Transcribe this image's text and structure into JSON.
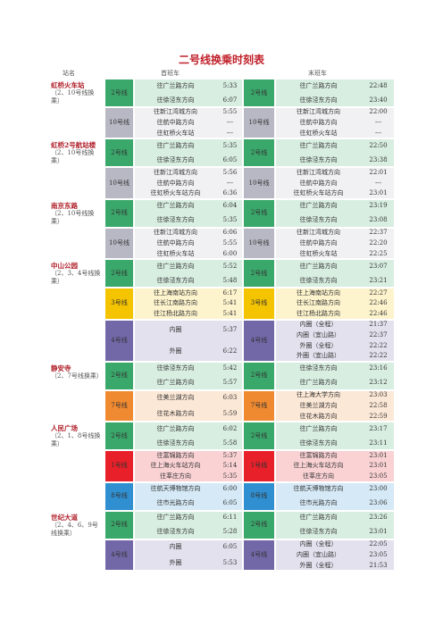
{
  "header": {
    "title": "二号线换乘时刻表",
    "columns": [
      "站名",
      "首班车",
      "末班车"
    ]
  },
  "stations": [
    {
      "name": "虹桥火车站",
      "note": "（2、10号线换乘）",
      "lines": [
        {
          "line": "2号线",
          "color": "#3aa86b",
          "first": [
            {
              "dir": "往广兰路方向",
              "time": "5:33"
            },
            {
              "dir": "往徐泾东方向",
              "time": "6:07"
            }
          ],
          "last": [
            {
              "dir": "往广兰路方向",
              "time": "22:48"
            },
            {
              "dir": "往徐泾东方向",
              "time": "23:40"
            }
          ]
        },
        {
          "line": "10号线",
          "color": "#b8b8c4",
          "first": [
            {
              "dir": "往新江湾城方向",
              "time": "5:55"
            },
            {
              "dir": "往航中路方向",
              "time": "---"
            },
            {
              "dir": "往虹桥火车站",
              "time": "---"
            }
          ],
          "last": [
            {
              "dir": "往新江湾城方向",
              "time": "22:00"
            },
            {
              "dir": "往航中路方向",
              "time": "---"
            },
            {
              "dir": "往虹桥火车站",
              "time": "---"
            }
          ]
        }
      ]
    },
    {
      "name": "虹桥2号航站楼",
      "note": "（2、10号线换乘）",
      "lines": [
        {
          "line": "2号线",
          "color": "#3aa86b",
          "first": [
            {
              "dir": "往广兰路方向",
              "time": "5:35"
            },
            {
              "dir": "往徐泾东方向",
              "time": "6:05"
            }
          ],
          "last": [
            {
              "dir": "往广兰路方向",
              "time": "22:50"
            },
            {
              "dir": "往徐泾东方向",
              "time": "23:38"
            }
          ]
        },
        {
          "line": "10号线",
          "color": "#b8b8c4",
          "first": [
            {
              "dir": "往新江湾城方向",
              "time": "5:56"
            },
            {
              "dir": "往航中路方向",
              "time": "---"
            },
            {
              "dir": "往虹桥火车站方向",
              "time": "6:36"
            }
          ],
          "last": [
            {
              "dir": "往新江湾城方向",
              "time": "22:01"
            },
            {
              "dir": "往航中路方向",
              "time": "---"
            },
            {
              "dir": "往虹桥火车站方向",
              "time": "23:01"
            }
          ]
        }
      ]
    },
    {
      "name": "南京东路",
      "note": "（2、10号线换乘）",
      "lines": [
        {
          "line": "2号线",
          "color": "#3aa86b",
          "first": [
            {
              "dir": "往广兰路方向",
              "time": "6:04"
            },
            {
              "dir": "往徐泾东方向",
              "time": "5:35"
            }
          ],
          "last": [
            {
              "dir": "往广兰路方向",
              "time": "23:19"
            },
            {
              "dir": "往徐泾东方向",
              "time": "23:08"
            }
          ]
        },
        {
          "line": "10号线",
          "color": "#b8b8c4",
          "first": [
            {
              "dir": "往新江湾城方向",
              "time": "6:06"
            },
            {
              "dir": "往航中路方向",
              "time": "5:55"
            },
            {
              "dir": "往虹桥火车站",
              "time": "6:00"
            }
          ],
          "last": [
            {
              "dir": "往新江湾城方向",
              "time": "22:37"
            },
            {
              "dir": "往航中路方向",
              "time": "22:20"
            },
            {
              "dir": "往虹桥火车站",
              "time": "22:25"
            }
          ]
        }
      ]
    },
    {
      "name": "中山公园",
      "note": "（2、3、4号线换乘）",
      "lines": [
        {
          "line": "2号线",
          "color": "#3aa86b",
          "first": [
            {
              "dir": "往广兰路方向",
              "time": "5:52"
            },
            {
              "dir": "往徐泾东方向",
              "time": "5:48"
            }
          ],
          "last": [
            {
              "dir": "往广兰路方向",
              "time": "23:07"
            },
            {
              "dir": "往徐泾东方向",
              "time": "23:21"
            }
          ]
        },
        {
          "line": "3号线",
          "color": "#f4c400",
          "first": [
            {
              "dir": "往上海南站方向",
              "time": "6:17"
            },
            {
              "dir": "往长江南路方向",
              "time": "5:41"
            },
            {
              "dir": "往江杨北路方向",
              "time": "5:41"
            }
          ],
          "last": [
            {
              "dir": "往上海南站方向",
              "time": "22:27"
            },
            {
              "dir": "往长江南路方向",
              "time": "22:46"
            },
            {
              "dir": "往江杨北路方向",
              "time": "22:46"
            }
          ]
        },
        {
          "line": "4号线",
          "color": "#7268a8",
          "first": [
            {
              "dir": "内圈",
              "time": "5:37"
            },
            {
              "dir": "外圈",
              "time": "6:22"
            }
          ],
          "last": [
            {
              "dir": "内圈（全程）",
              "time": "21:37"
            },
            {
              "dir": "内圈（宜山路）",
              "time": "22:37"
            },
            {
              "dir": "外圈（全程）",
              "time": "22:22"
            },
            {
              "dir": "外圈（宜山路）",
              "time": "22:22"
            }
          ]
        }
      ]
    },
    {
      "name": "静安寺",
      "note": "（2、7号线换乘）",
      "lines": [
        {
          "line": "2号线",
          "color": "#3aa86b",
          "first": [
            {
              "dir": "往徐泾东方向",
              "time": "5:42"
            },
            {
              "dir": "往广兰路方向",
              "time": "5:57"
            }
          ],
          "last": [
            {
              "dir": "往徐泾东方向",
              "time": "23:16"
            },
            {
              "dir": "往广兰路方向",
              "time": "23:12"
            }
          ]
        },
        {
          "line": "7号线",
          "color": "#f08a30",
          "first": [
            {
              "dir": "往美兰湖方向",
              "time": "6:03"
            },
            {
              "dir": "往花木路方向",
              "time": "5:59"
            }
          ],
          "last": [
            {
              "dir": "往上海大学方向",
              "time": "23:03"
            },
            {
              "dir": "往美兰湖方向",
              "time": "22:58"
            },
            {
              "dir": "往花木路方向",
              "time": "22:59"
            }
          ]
        }
      ]
    },
    {
      "name": "人民广场",
      "note": "（2、1、8号线换乘）",
      "lines": [
        {
          "line": "2号线",
          "color": "#3aa86b",
          "first": [
            {
              "dir": "往广兰路方向",
              "time": "6:02"
            },
            {
              "dir": "往徐泾东方向",
              "time": "5:58"
            }
          ],
          "last": [
            {
              "dir": "往广兰路方向",
              "time": "23:17"
            },
            {
              "dir": "往徐泾东方向",
              "time": "23:11"
            }
          ]
        },
        {
          "line": "1号线",
          "color": "#e8202a",
          "first": [
            {
              "dir": "往富锦路方向",
              "time": "5:37"
            },
            {
              "dir": "往上海火车站方向",
              "time": "5:14"
            },
            {
              "dir": "往莘庄方向",
              "time": "5:35"
            }
          ],
          "last": [
            {
              "dir": "往富锦路方向",
              "time": "23:01"
            },
            {
              "dir": "往上海火车站方向",
              "time": "23:01"
            },
            {
              "dir": "往莘庄方向",
              "time": "23:05"
            }
          ]
        },
        {
          "line": "8号线",
          "color": "#2f8fd0",
          "first": [
            {
              "dir": "往航天博物馆方向",
              "time": "6:00"
            },
            {
              "dir": "往市光路方向",
              "time": "6:05"
            }
          ],
          "last": [
            {
              "dir": "往航天博物馆方向",
              "time": "23:00"
            },
            {
              "dir": "往市光路方向",
              "time": "23:06"
            }
          ]
        }
      ]
    },
    {
      "name": "世纪大道",
      "note": "（2、4、6、9号线换乘）",
      "lines": [
        {
          "line": "2号线",
          "color": "#3aa86b",
          "first": [
            {
              "dir": "往广兰路方向",
              "time": "6:11"
            },
            {
              "dir": "往徐泾东方向",
              "time": "5:28"
            }
          ],
          "last": [
            {
              "dir": "往广兰路方向",
              "time": "23:26"
            },
            {
              "dir": "往徐泾东方向",
              "time": "23:01"
            }
          ]
        },
        {
          "line": "4号线",
          "color": "#7268a8",
          "first": [
            {
              "dir": "内圈",
              "time": "6:05"
            },
            {
              "dir": "外圈",
              "time": "5:53"
            }
          ],
          "last": [
            {
              "dir": "内圈（全程）",
              "time": "22:05"
            },
            {
              "dir": "内圈（宜山路）",
              "time": "23:05"
            },
            {
              "dir": "外圈（全程）",
              "time": "21:53"
            }
          ]
        }
      ]
    }
  ]
}
